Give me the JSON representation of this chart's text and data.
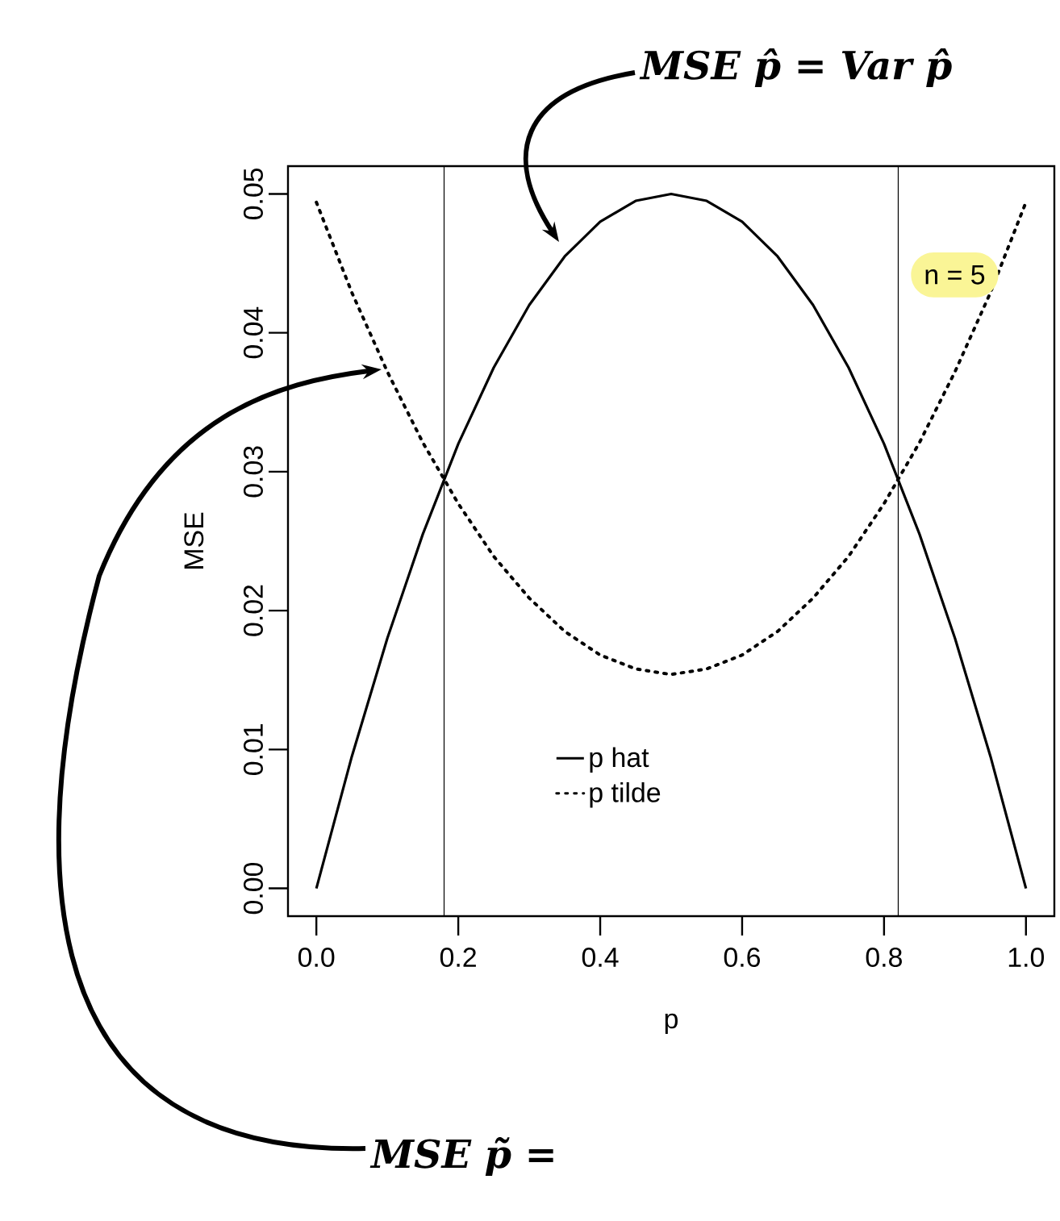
{
  "chart_data": {
    "type": "line",
    "xlabel": "p",
    "ylabel": "MSE",
    "xlim": [
      -0.04,
      1.04
    ],
    "ylim": [
      -0.002,
      0.052
    ],
    "xticks": [
      {
        "value": 0,
        "label": "0.0"
      },
      {
        "value": 0.2,
        "label": "0.2"
      },
      {
        "value": 0.4,
        "label": "0.4"
      },
      {
        "value": 0.6,
        "label": "0.6"
      },
      {
        "value": 0.8,
        "label": "0.8"
      },
      {
        "value": 1,
        "label": "1.0"
      }
    ],
    "yticks": [
      {
        "value": 0,
        "label": "0.00"
      },
      {
        "value": 0.01,
        "label": "0.01"
      },
      {
        "value": 0.02,
        "label": "0.02"
      },
      {
        "value": 0.03,
        "label": "0.03"
      },
      {
        "value": 0.04,
        "label": "0.04"
      },
      {
        "value": 0.05,
        "label": "0.05"
      }
    ],
    "x": [
      0,
      0.05,
      0.1,
      0.15,
      0.2,
      0.25,
      0.3,
      0.35,
      0.4,
      0.45,
      0.5,
      0.55,
      0.6,
      0.65,
      0.7,
      0.75,
      0.8,
      0.85,
      0.9,
      0.95,
      1
    ],
    "series": [
      {
        "name": "p hat",
        "color": "#000000",
        "line_style": "solid",
        "values": [
          0,
          0.0095,
          0.018,
          0.0255,
          0.032,
          0.0375,
          0.042,
          0.0455,
          0.048,
          0.0495,
          0.05,
          0.0495,
          0.048,
          0.0455,
          0.042,
          0.0375,
          0.032,
          0.0255,
          0.018,
          0.0095,
          0
        ]
      },
      {
        "name": "p tilde",
        "color": "#000000",
        "line_style": "dotted",
        "values": [
          0.0494,
          0.0429,
          0.0372,
          0.0321,
          0.0277,
          0.0239,
          0.0209,
          0.0185,
          0.0168,
          0.0158,
          0.0154,
          0.0158,
          0.0168,
          0.0185,
          0.0209,
          0.0239,
          0.0277,
          0.0321,
          0.0372,
          0.0429,
          0.0494
        ]
      }
    ],
    "ref_lines": [
      {
        "axis": "x",
        "value": 0.18,
        "color": "#000000"
      },
      {
        "axis": "x",
        "value": 0.82,
        "color": "#000000"
      }
    ],
    "legend": "bottom",
    "grid": false,
    "annotations": [
      "n = 5",
      "MSE p̂ = Var p̂",
      "MSE p̃ ="
    ]
  }
}
